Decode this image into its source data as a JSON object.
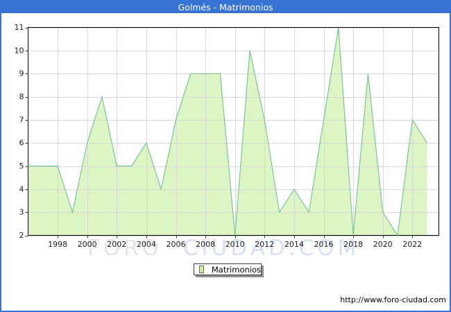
{
  "window": {
    "title": "Golmés - Matrimonios"
  },
  "chart_data": {
    "type": "area",
    "title": "Golmés - Matrimonios",
    "series_name": "Matrimonios",
    "years": [
      1996,
      1997,
      1998,
      1999,
      2000,
      2001,
      2002,
      2003,
      2004,
      2005,
      2006,
      2007,
      2008,
      2009,
      2010,
      2011,
      2012,
      2013,
      2014,
      2015,
      2016,
      2017,
      2018,
      2019,
      2020,
      2021,
      2022,
      2023
    ],
    "values": [
      5,
      5,
      5,
      3,
      6,
      8,
      5,
      5,
      6,
      4,
      7,
      9,
      9,
      9,
      2,
      10,
      7,
      3,
      4,
      3,
      7,
      11,
      2,
      9,
      3,
      2,
      7,
      6
    ],
    "ylim": [
      2,
      11
    ],
    "yticks": [
      2,
      3,
      4,
      5,
      6,
      7,
      8,
      9,
      10,
      11
    ],
    "xticks": [
      1998,
      2000,
      2002,
      2004,
      2006,
      2008,
      2010,
      2012,
      2014,
      2016,
      2018,
      2020,
      2022
    ],
    "grid": true,
    "legend_position": "bottom-center",
    "colors": {
      "area_fill": "#ddf4c5",
      "line": "#7cc49a",
      "gridline": "#d8d8d8",
      "plot_border": "#000000",
      "accent": "#3673d4",
      "tick_text": "#1a1a1a"
    }
  },
  "legend": {
    "label": "Matrimonios",
    "swatch_color": "#c6f0a2"
  },
  "watermark": {
    "part1": "FORO",
    "part2": "CIUDAD.COM"
  },
  "footer": {
    "url": "http://www.foro-ciudad.com"
  }
}
